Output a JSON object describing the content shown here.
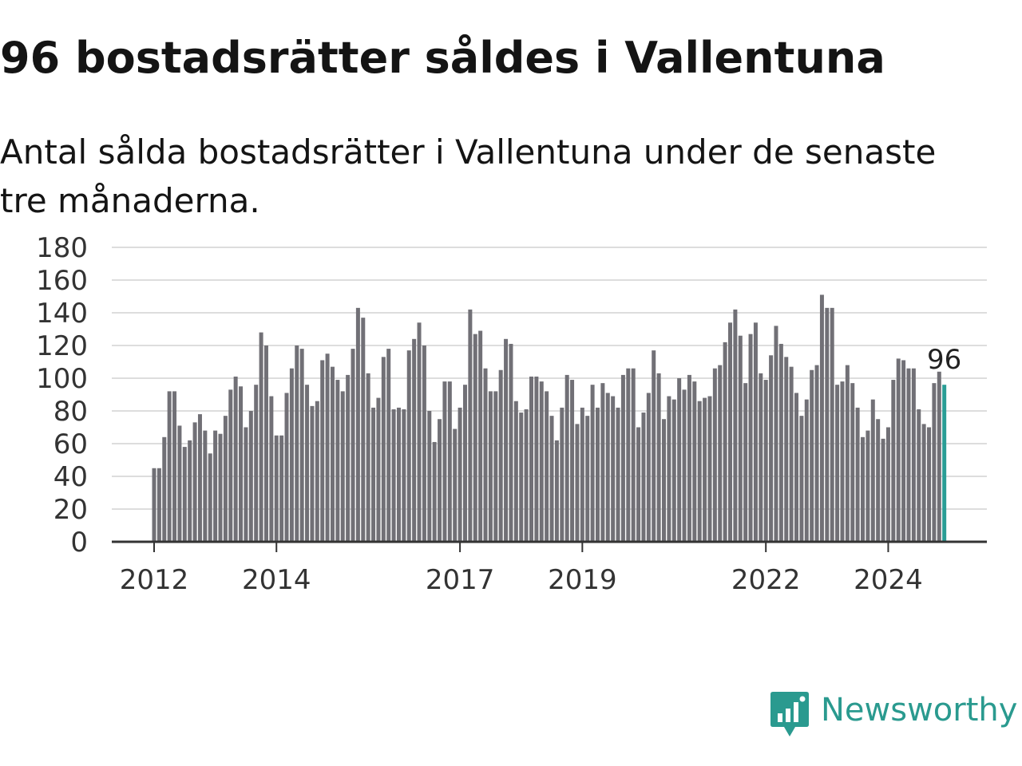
{
  "title": "96 bostadsrätter såldes i Vallentuna",
  "subtitle": "Antal sålda bostadsrätter i Vallentuna under de senaste tre månaderna.",
  "brand": {
    "name": "Newsworthy",
    "logo_icon": "chart-bubble-icon"
  },
  "colors": {
    "bar": "#717076",
    "highlight": "#2a9d95",
    "grid": "#dddddd",
    "axis": "#333333",
    "text": "#333333",
    "brand": "#2a9a8f"
  },
  "chart_data": {
    "type": "bar",
    "ylim": [
      0,
      180
    ],
    "yticks": [
      0,
      20,
      40,
      60,
      80,
      100,
      120,
      140,
      160,
      180
    ],
    "xtick_labels": [
      "2012",
      "2014",
      "2017",
      "2019",
      "2022",
      "2024"
    ],
    "xtick_index": [
      0,
      24,
      60,
      84,
      120,
      144
    ],
    "grid": true,
    "highlight_label": "96",
    "values": [
      45,
      45,
      64,
      92,
      92,
      71,
      58,
      62,
      73,
      78,
      68,
      54,
      68,
      66,
      77,
      93,
      101,
      95,
      70,
      80,
      96,
      128,
      120,
      89,
      65,
      65,
      91,
      106,
      120,
      118,
      96,
      83,
      86,
      111,
      115,
      107,
      99,
      92,
      102,
      118,
      143,
      137,
      103,
      82,
      88,
      113,
      118,
      81,
      82,
      81,
      117,
      124,
      134,
      120,
      80,
      61,
      75,
      98,
      98,
      69,
      82,
      96,
      142,
      127,
      129,
      106,
      92,
      92,
      105,
      124,
      121,
      86,
      79,
      81,
      101,
      101,
      98,
      92,
      77,
      62,
      82,
      102,
      99,
      72,
      82,
      77,
      96,
      82,
      97,
      91,
      89,
      82,
      102,
      106,
      106,
      70,
      79,
      91,
      117,
      103,
      75,
      89,
      87,
      100,
      93,
      102,
      98,
      86,
      88,
      89,
      106,
      108,
      122,
      134,
      142,
      126,
      97,
      127,
      134,
      103,
      99,
      114,
      132,
      121,
      113,
      107,
      91,
      77,
      87,
      105,
      108,
      151,
      143,
      143,
      96,
      98,
      108,
      97,
      82,
      64,
      68,
      87,
      75,
      63,
      70,
      99,
      112,
      111,
      106,
      106,
      81,
      72,
      70,
      97,
      104,
      96
    ]
  }
}
